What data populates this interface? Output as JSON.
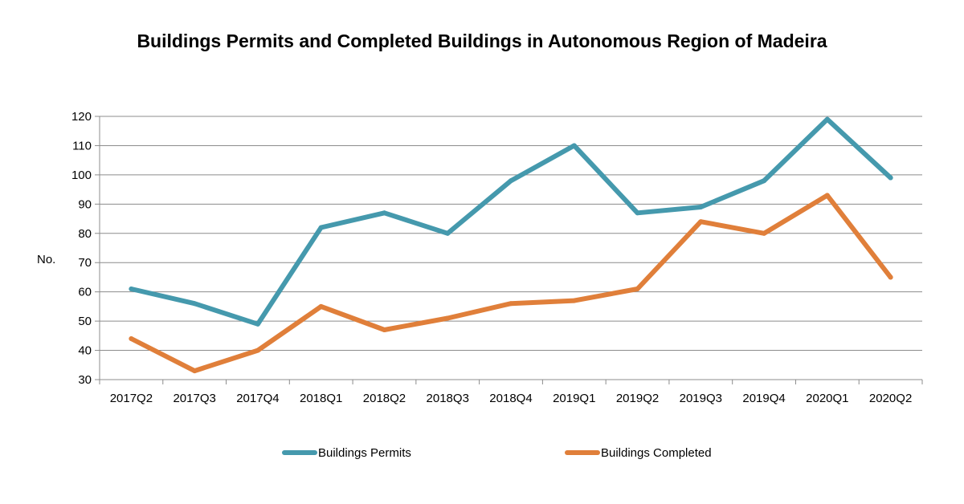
{
  "chart_data": {
    "type": "line",
    "title": "Buildings Permits and Completed Buildings in Autonomous Region of Madeira",
    "ylabel": "No.",
    "xlabel": "",
    "ylim": [
      30,
      120
    ],
    "yticks": [
      30,
      40,
      50,
      60,
      70,
      80,
      90,
      100,
      110,
      120
    ],
    "grid": true,
    "legend_position": "bottom",
    "categories": [
      "2017Q2",
      "2017Q3",
      "2017Q4",
      "2018Q1",
      "2018Q2",
      "2018Q3",
      "2018Q4",
      "2019Q1",
      "2019Q2",
      "2019Q3",
      "2019Q4",
      "2020Q1",
      "2020Q2"
    ],
    "series": [
      {
        "name": "Buildings Permits",
        "color": "#4599ad",
        "values": [
          61,
          56,
          49,
          82,
          87,
          80,
          98,
          110,
          87,
          89,
          98,
          119,
          99
        ]
      },
      {
        "name": "Buildings Completed",
        "color": "#e07f3a",
        "values": [
          44,
          33,
          40,
          55,
          47,
          51,
          56,
          57,
          61,
          84,
          80,
          93,
          65
        ]
      }
    ]
  }
}
